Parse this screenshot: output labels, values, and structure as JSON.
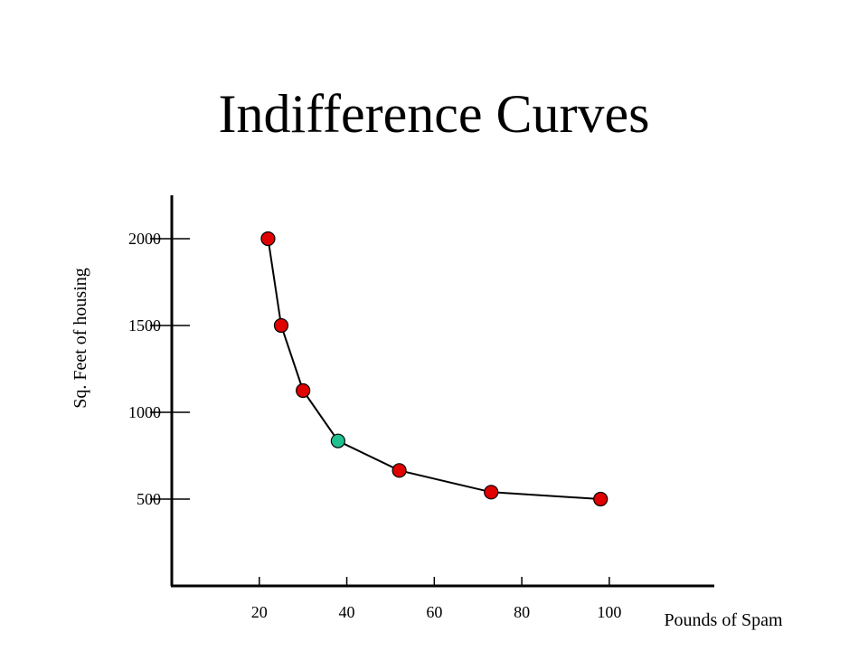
{
  "slide": {
    "title": "Indifference Curves"
  },
  "chart_data": {
    "type": "line",
    "title": "Indifference Curves",
    "xlabel": "Pounds of Spam",
    "ylabel": "Sq. Feet of housing",
    "xlim": [
      0,
      124
    ],
    "ylim": [
      0,
      2250
    ],
    "x_ticks": [
      20,
      40,
      60,
      80,
      100
    ],
    "y_ticks": [
      500,
      1000,
      1500,
      2000
    ],
    "grid": false,
    "legend": "none",
    "line_color": "#000000",
    "series": [
      {
        "points": [
          {
            "x": 22,
            "y": 2000,
            "color": "#e00000"
          },
          {
            "x": 25,
            "y": 1500,
            "color": "#e00000"
          },
          {
            "x": 30,
            "y": 1125,
            "color": "#e00000"
          },
          {
            "x": 38,
            "y": 835,
            "color": "#20c090"
          },
          {
            "x": 52,
            "y": 665,
            "color": "#e00000"
          },
          {
            "x": 73,
            "y": 540,
            "color": "#e00000"
          },
          {
            "x": 98,
            "y": 500,
            "color": "#e00000"
          }
        ]
      }
    ]
  }
}
